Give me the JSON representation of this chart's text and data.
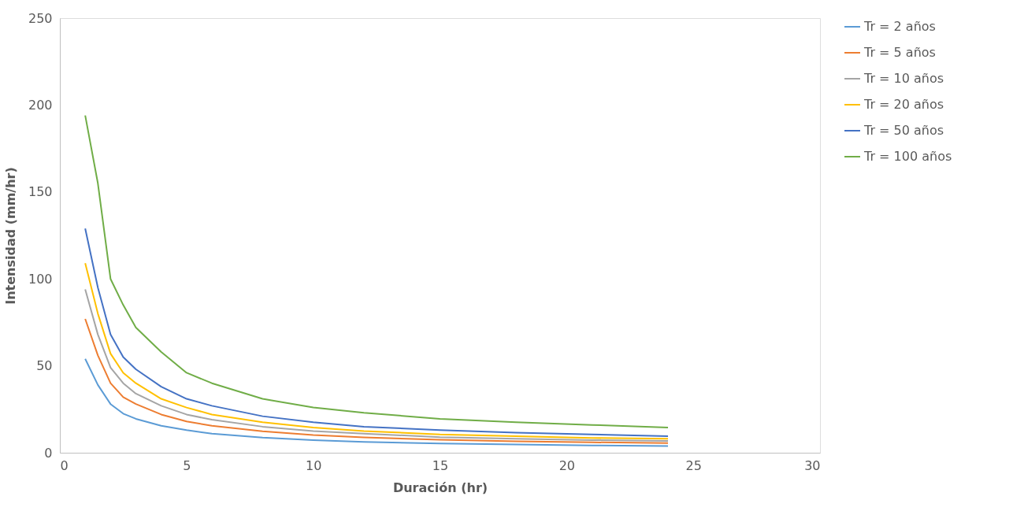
{
  "chart_data": {
    "type": "line",
    "xlabel": "Duración (hr)",
    "ylabel": "Intensidad (mm/hr)",
    "x": [
      1,
      1.5,
      2,
      2.5,
      3,
      4,
      5,
      6,
      8,
      10,
      12,
      15,
      18,
      21,
      24
    ],
    "xlim": [
      0,
      30
    ],
    "xticks": [
      0,
      5,
      10,
      15,
      20,
      25,
      30
    ],
    "ylim": [
      0,
      250
    ],
    "yticks": [
      0,
      50,
      100,
      150,
      200,
      250
    ],
    "grid": false,
    "legend": "right",
    "marker": "none",
    "line_style": "solid",
    "series": [
      {
        "name": "Tr = 2 años",
        "color": "#5b9bd5",
        "values": [
          54,
          39,
          28,
          22.5,
          19.5,
          15.5,
          13,
          11,
          8.7,
          7.2,
          6.2,
          5.3,
          4.7,
          4.2,
          3.9
        ]
      },
      {
        "name": "Tr = 5 años",
        "color": "#ed7d31",
        "values": [
          77,
          56,
          40,
          32,
          28,
          22,
          18,
          15.5,
          12.3,
          10.2,
          8.8,
          7.5,
          6.6,
          6,
          5.5
        ]
      },
      {
        "name": "Tr = 10 años",
        "color": "#a5a5a5",
        "values": [
          94,
          68,
          49,
          40,
          34,
          27,
          22,
          19,
          15,
          12.5,
          11,
          9,
          8,
          7.3,
          6.8
        ]
      },
      {
        "name": "Tr = 20 años",
        "color": "#ffc000",
        "values": [
          109,
          80,
          57,
          46,
          40,
          31,
          26,
          22,
          17.5,
          14.5,
          12.5,
          10.5,
          9.5,
          8.5,
          8
        ]
      },
      {
        "name": "Tr = 50 años",
        "color": "#4472c4",
        "values": [
          129,
          95,
          68,
          55,
          48,
          38,
          31,
          27,
          21,
          17.5,
          15,
          13,
          11.5,
          10.5,
          9.5
        ]
      },
      {
        "name": "Tr = 100 años",
        "color": "#70ad47",
        "values": [
          194,
          155,
          100,
          85,
          72,
          58,
          46,
          40,
          31,
          26,
          23,
          19.5,
          17.5,
          16,
          14.5
        ]
      }
    ]
  }
}
